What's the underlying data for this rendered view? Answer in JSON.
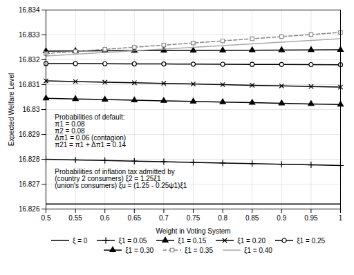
{
  "chart_data": {
    "type": "line",
    "xlabel": "Weight in Voting System",
    "ylabel": "Expected Welfare Level",
    "x": [
      0.5,
      0.55,
      0.6,
      0.65,
      0.7,
      0.75,
      0.8,
      0.85,
      0.9,
      0.95,
      1.0
    ],
    "xlim": [
      0.5,
      1.0
    ],
    "ylim": [
      16.826,
      16.834
    ],
    "xticks": [
      0.5,
      0.55,
      0.6,
      0.65,
      0.7,
      0.75,
      0.8,
      0.85,
      0.9,
      0.95,
      1
    ],
    "yticks": [
      16.826,
      16.827,
      16.828,
      16.829,
      16.83,
      16.831,
      16.832,
      16.833,
      16.834
    ],
    "grid": true,
    "legend": "bottom",
    "annotations": [
      {
        "text": "Probabilities of default:\nπ1 = 0.08\nπ2 = 0.08\nΔπ1 = 0.06 (contagion)\nπ21 = π1 + Δπ1 = 0.14",
        "x": 0.515,
        "y": 16.8298
      },
      {
        "text": "Probabilities of inflation tax admitted by\n(country 2 consumers) ξ2 = 1.25ξ1\n(union's consumers) ξu = (1.25 - 0.25ψ1)ξ1",
        "x": 0.515,
        "y": 16.8276
      }
    ],
    "series": [
      {
        "name": "ξ = 0",
        "color": "#000000",
        "line_style": "solid",
        "marker": "none",
        "values": [
          16.8262,
          16.8262,
          16.8262,
          16.8262,
          16.8262,
          16.8262,
          16.8262,
          16.8262,
          16.8262,
          16.8262,
          16.8262
        ]
      },
      {
        "name": "ξ1 = 0.05",
        "color": "#000000",
        "line_style": "solid",
        "marker": "plus",
        "values": [
          16.828,
          16.827975,
          16.82795,
          16.827925,
          16.8279,
          16.827875,
          16.82785,
          16.827825,
          16.8278,
          16.827775,
          16.82775
        ]
      },
      {
        "name": "ξ1 = 0.15",
        "color": "#000000",
        "line_style": "solid",
        "marker": "triangle",
        "values": [
          16.83045,
          16.830425,
          16.8304,
          16.830375,
          16.83035,
          16.830325,
          16.8303,
          16.830275,
          16.83025,
          16.830225,
          16.8302
        ]
      },
      {
        "name": "ξ1 = 0.20",
        "color": "#000000",
        "line_style": "solid",
        "marker": "x",
        "values": [
          16.83115,
          16.831125,
          16.8311,
          16.831075,
          16.83105,
          16.831025,
          16.831,
          16.830975,
          16.83095,
          16.830925,
          16.8309
        ]
      },
      {
        "name": "ξ1 = 0.25",
        "color": "#000000",
        "line_style": "solid",
        "marker": "circle-open",
        "values": [
          16.83185,
          16.831845,
          16.83184,
          16.831835,
          16.83183,
          16.831825,
          16.83182,
          16.831815,
          16.83181,
          16.831805,
          16.8318
        ]
      },
      {
        "name": "ξ1 = 0.30",
        "color": "#000000",
        "line_style": "solid",
        "marker": "triangle",
        "values": [
          16.83235,
          16.832355,
          16.83236,
          16.832365,
          16.83237,
          16.832375,
          16.83238,
          16.832385,
          16.83239,
          16.832395,
          16.8324
        ]
      },
      {
        "name": "ξ1 = 0.35",
        "color": "#888888",
        "line_style": "dashed",
        "marker": "square-open",
        "values": [
          16.83225,
          16.832335,
          16.83242,
          16.832505,
          16.83259,
          16.832675,
          16.83276,
          16.832845,
          16.83293,
          16.833015,
          16.8331
        ]
      },
      {
        "name": "ξ1 = 0.40",
        "color": "#aaaaaa",
        "line_style": "solid",
        "marker": "none",
        "values": [
          16.83215,
          16.83222,
          16.83229,
          16.83236,
          16.83243,
          16.8325,
          16.83257,
          16.83264,
          16.83271,
          16.83278,
          16.83285
        ]
      }
    ]
  }
}
